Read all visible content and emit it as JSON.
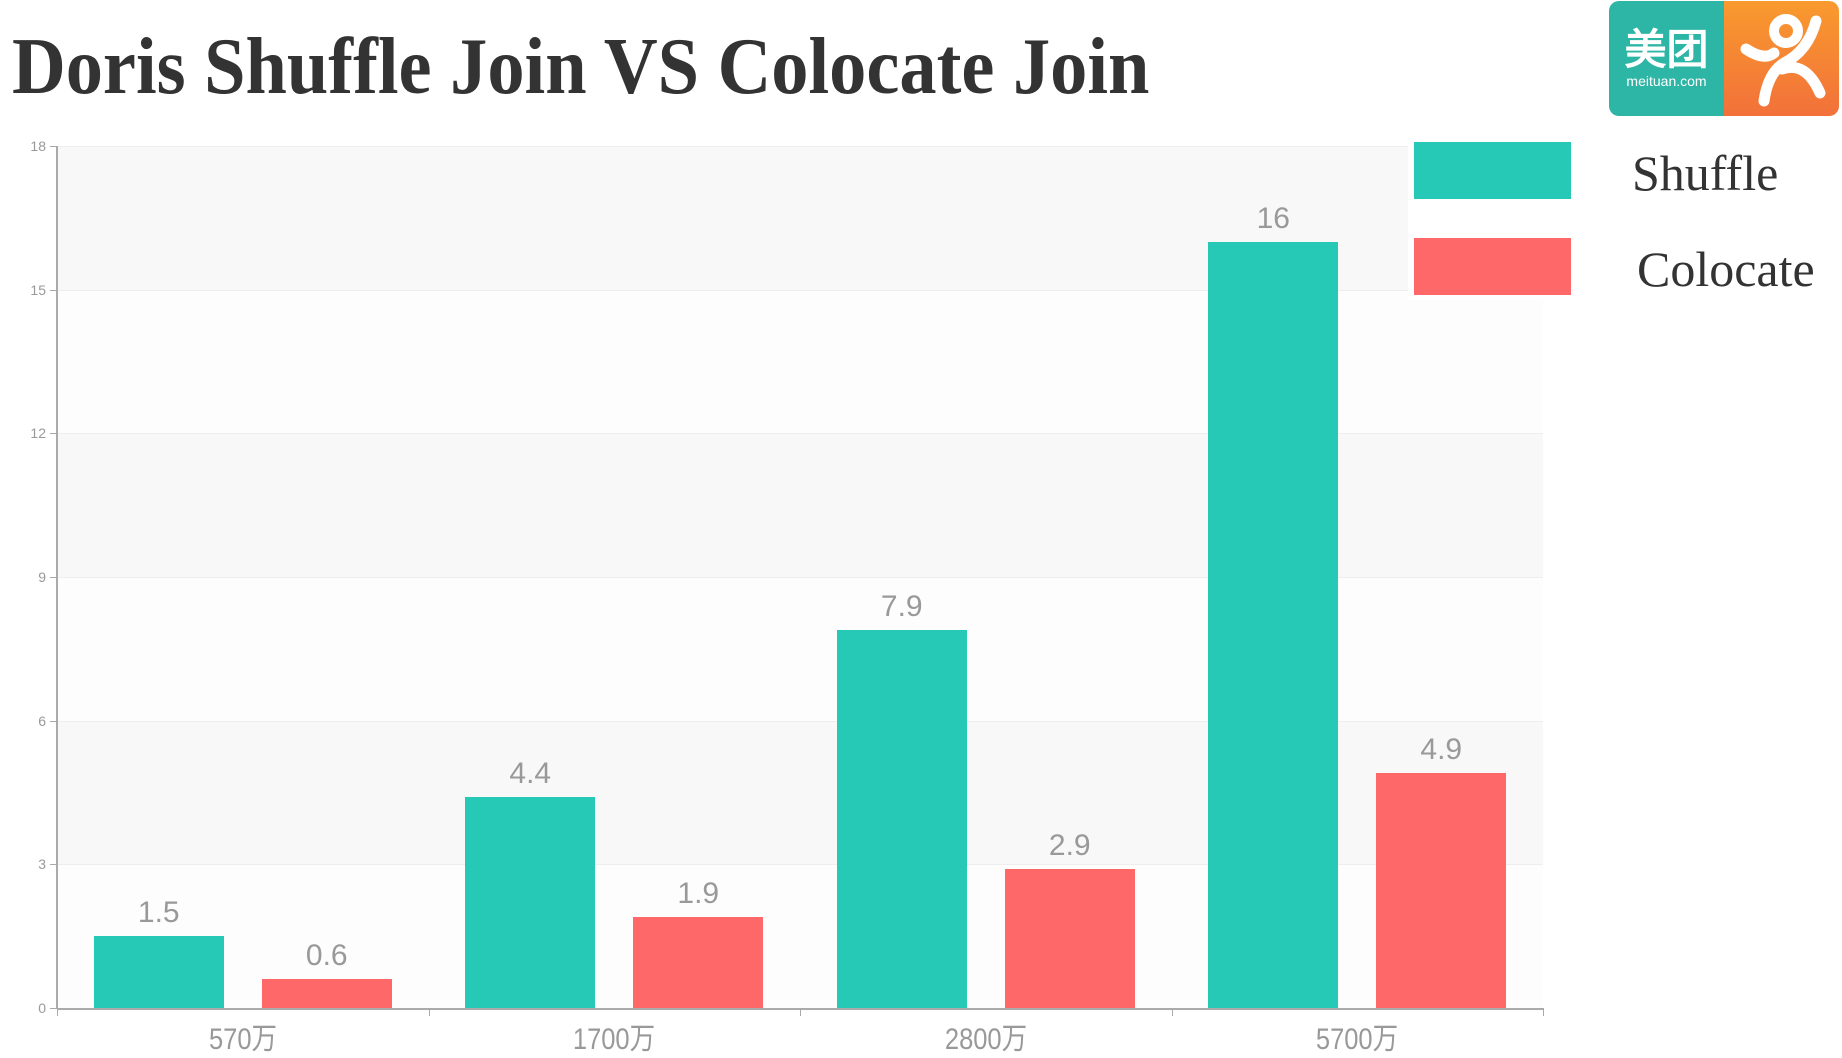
{
  "title": "Doris Shuffle Join VS Colocate Join",
  "logo": {
    "brand_cn": "美团",
    "brand_en": "meituan.com",
    "colors": {
      "left": "#2db5a6",
      "right_top": "#f99a2e",
      "right_bottom": "#f2713a"
    }
  },
  "legend": {
    "items": [
      {
        "label": "Shuffle",
        "color": "#26c9b5"
      },
      {
        "label": "Colocate",
        "color": "#ff6868"
      }
    ]
  },
  "axis": {
    "y_ticks": [
      "0",
      "3",
      "6",
      "9",
      "12",
      "15",
      "18"
    ],
    "x_labels": [
      "570万",
      "1700万",
      "2800万",
      "5700万"
    ]
  },
  "chart_data": {
    "type": "bar",
    "title": "Doris Shuffle Join VS Colocate Join",
    "categories": [
      "570万",
      "1700万",
      "2800万",
      "5700万"
    ],
    "series": [
      {
        "name": "Shuffle",
        "color": "#26c9b5",
        "values": [
          1.5,
          4.4,
          7.9,
          16
        ]
      },
      {
        "name": "Colocate",
        "color": "#ff6868",
        "values": [
          0.6,
          1.9,
          2.9,
          4.9
        ]
      }
    ],
    "xlabel": "",
    "ylabel": "",
    "ylim": [
      0,
      18
    ],
    "yticks": [
      0,
      3,
      6,
      9,
      12,
      15,
      18
    ],
    "grid": true,
    "alternating_bands": true,
    "data_labels": true,
    "legend_position": "top-right"
  }
}
